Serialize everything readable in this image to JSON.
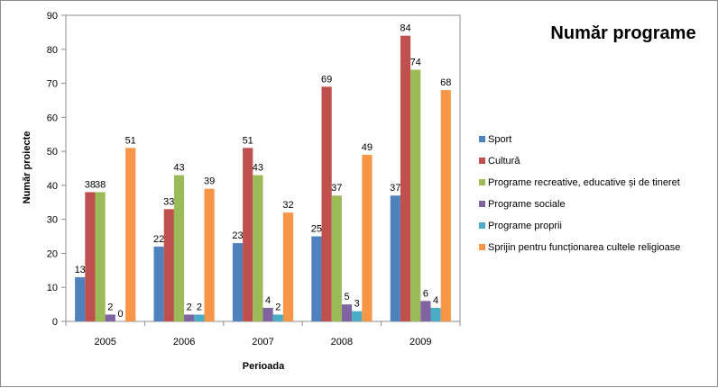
{
  "chart_data": {
    "type": "bar",
    "title": "Număr programe",
    "xlabel": "Perioada",
    "ylabel": "Număr proiecte",
    "ylim": [
      0,
      90
    ],
    "yticks": [
      0,
      10,
      20,
      30,
      40,
      50,
      60,
      70,
      80,
      90
    ],
    "grid": false,
    "legend_position": "right",
    "categories": [
      "2005",
      "2006",
      "2007",
      "2008",
      "2009"
    ],
    "series": [
      {
        "name": "Sport",
        "color": "#4F81BD",
        "values": [
          13,
          22,
          23,
          25,
          37
        ]
      },
      {
        "name": "Cultură",
        "color": "#C0504D",
        "values": [
          38,
          33,
          51,
          69,
          84
        ]
      },
      {
        "name": "Programe recreative, educative și de tineret",
        "color": "#9BBB59",
        "values": [
          38,
          43,
          43,
          37,
          74
        ]
      },
      {
        "name": "Programe sociale",
        "color": "#8064A2",
        "values": [
          2,
          2,
          4,
          5,
          6
        ]
      },
      {
        "name": "Programe proprii",
        "color": "#4BACC6",
        "values": [
          0,
          2,
          2,
          3,
          4
        ]
      },
      {
        "name": "Sprijin pentru funcționarea cultele religioase",
        "color": "#F79646",
        "values": [
          51,
          39,
          32,
          49,
          68
        ]
      }
    ]
  }
}
